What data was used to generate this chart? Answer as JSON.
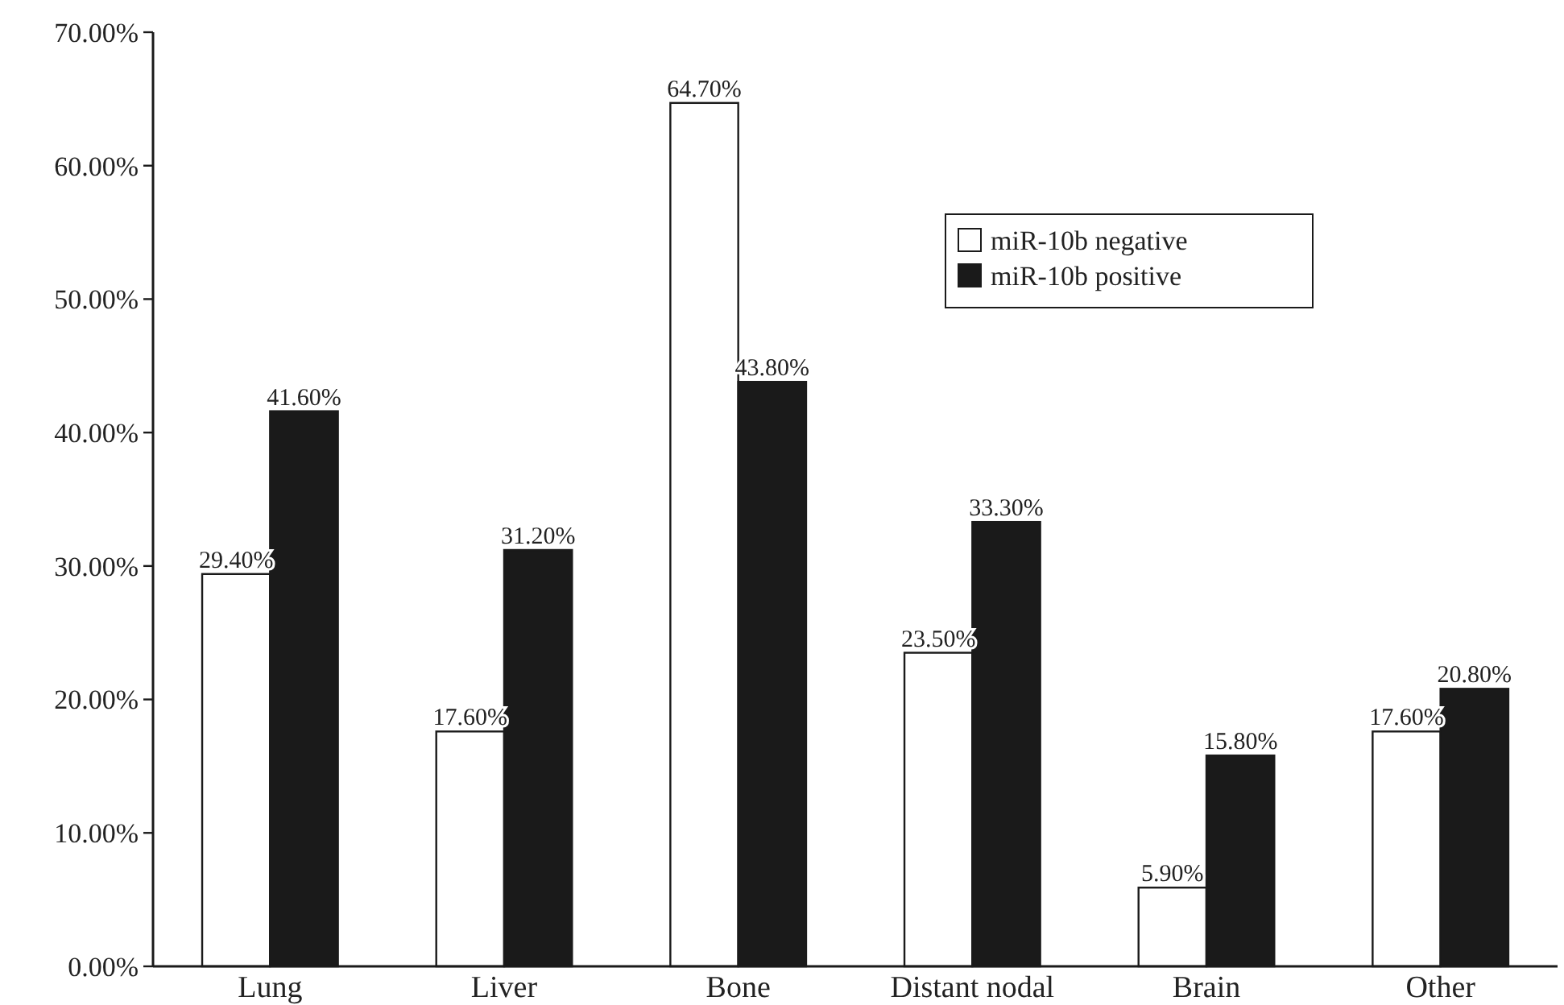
{
  "chart_data": {
    "type": "bar",
    "categories": [
      "Lung",
      "Liver",
      "Bone",
      "Distant nodal",
      "Brain",
      "Other"
    ],
    "series": [
      {
        "name": "miR-10b negative",
        "color": "#ffffff",
        "values": [
          29.4,
          17.6,
          64.7,
          23.5,
          5.9,
          17.6
        ],
        "value_labels": [
          "29.40%",
          "17.60%",
          "64.70%",
          "23.50%",
          "5.90%",
          "17.60%"
        ]
      },
      {
        "name": "miR-10b positive",
        "color": "#1a1a1a",
        "values": [
          41.6,
          31.2,
          43.8,
          33.3,
          15.8,
          20.8
        ],
        "value_labels": [
          "41.60%",
          "31.20%",
          "43.80%",
          "33.30%",
          "15.80%",
          "20.80%"
        ]
      }
    ],
    "ylim": [
      0,
      70
    ],
    "yticks": [
      {
        "value": 0,
        "label": "0.00%"
      },
      {
        "value": 10,
        "label": "10.00%"
      },
      {
        "value": 20,
        "label": "20.00%"
      },
      {
        "value": 30,
        "label": "30.00%"
      },
      {
        "value": 40,
        "label": "40.00%"
      },
      {
        "value": 50,
        "label": "50.00%"
      },
      {
        "value": 60,
        "label": "60.00%"
      },
      {
        "value": 70,
        "label": "70.00%"
      }
    ],
    "legend": "top right",
    "grid": false
  }
}
